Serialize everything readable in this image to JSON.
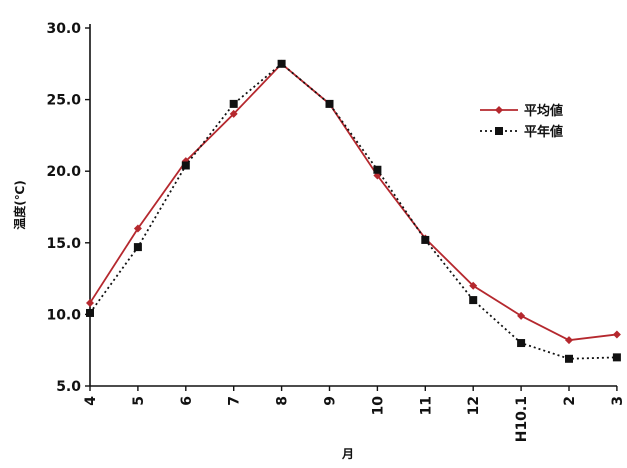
{
  "chart_data": {
    "type": "line",
    "categories": [
      "4",
      "5",
      "6",
      "7",
      "8",
      "9",
      "10",
      "11",
      "12",
      "H10.1",
      "2",
      "3"
    ],
    "series": [
      {
        "name": "平均値",
        "color": "#b5282e",
        "style": "solid",
        "marker": "diamond",
        "values": [
          10.8,
          16.0,
          20.7,
          24.0,
          27.5,
          24.7,
          19.7,
          15.3,
          12.0,
          9.9,
          8.2,
          8.6
        ]
      },
      {
        "name": "平年値",
        "color": "#111111",
        "style": "dotted",
        "marker": "square",
        "values": [
          10.1,
          14.7,
          20.4,
          24.7,
          27.5,
          24.7,
          20.1,
          15.2,
          11.0,
          8.0,
          6.9,
          7.0
        ]
      }
    ],
    "xlabel": "月",
    "ylabel": "温度(℃)",
    "ylim": [
      5.0,
      30.0
    ],
    "yticks": [
      "5.0",
      "10.0",
      "15.0",
      "20.0",
      "25.0",
      "30.0"
    ],
    "grid": false,
    "legend_position": "top-right"
  }
}
